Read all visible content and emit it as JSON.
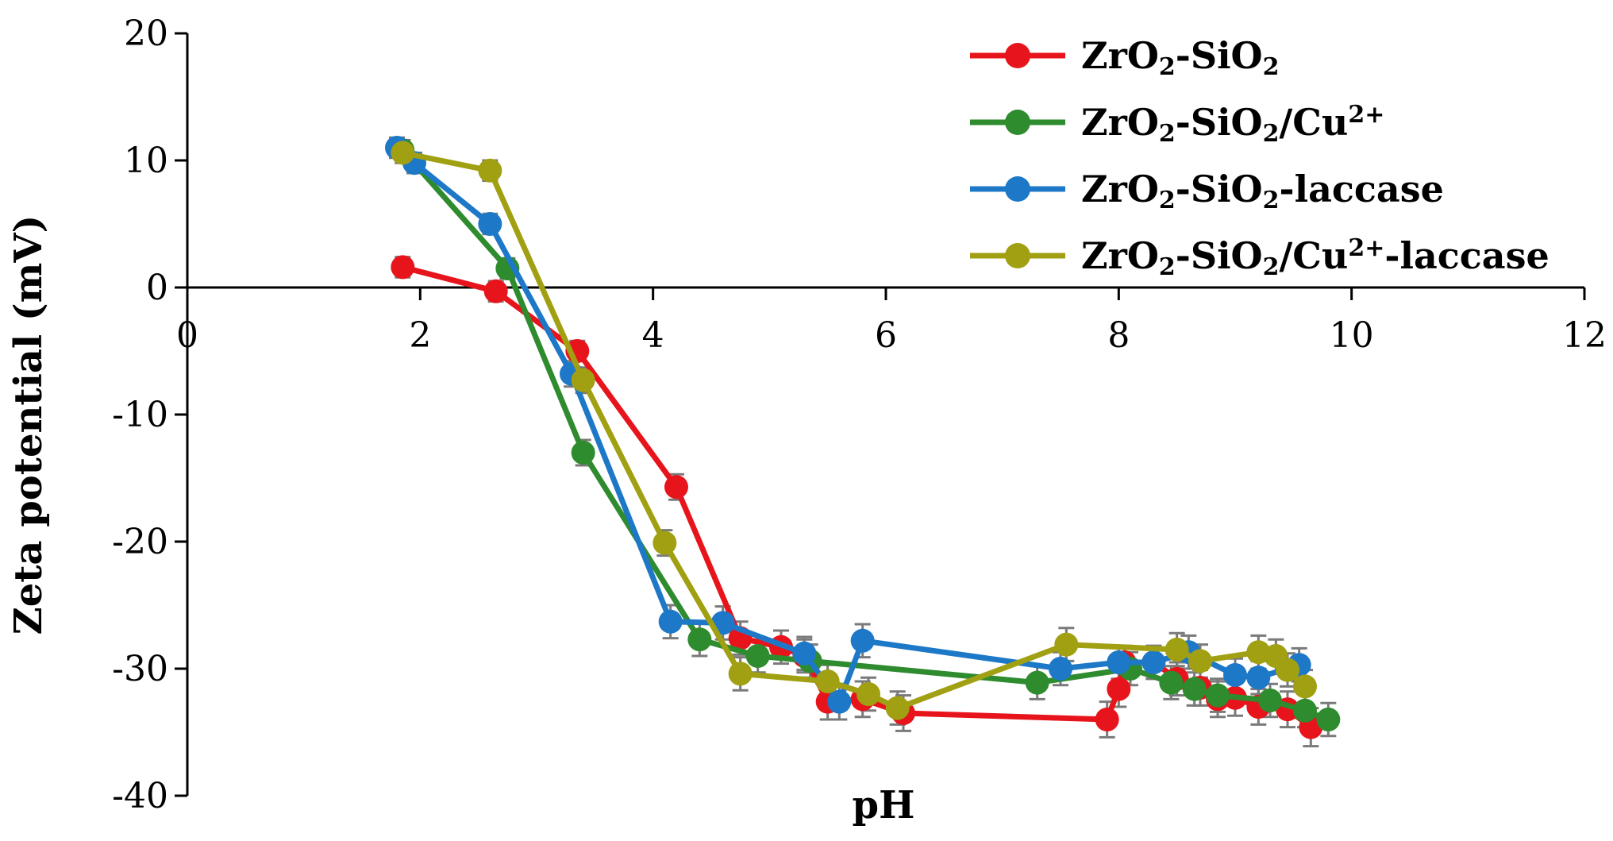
{
  "chart_data": {
    "type": "line",
    "title": "",
    "xlabel": "pH",
    "ylabel": "Zeta potential (mV)",
    "xlim": [
      0,
      12
    ],
    "ylim": [
      -40,
      20
    ],
    "xticks": [
      0,
      2,
      4,
      6,
      8,
      10,
      12
    ],
    "yticks": [
      20,
      10,
      0,
      -10,
      -20,
      -30,
      -40
    ],
    "legend_position": "top-right",
    "series": [
      {
        "name": "ZrO2-SiO2",
        "label_parts": [
          [
            "ZrO",
            ""
          ],
          [
            "2",
            "sub"
          ],
          [
            "-SiO",
            ""
          ],
          [
            "2",
            "sub"
          ]
        ],
        "color": "#e8141c",
        "points": [
          [
            1.85,
            1.6
          ],
          [
            2.65,
            -0.3
          ],
          [
            3.35,
            -5.0
          ],
          [
            4.2,
            -15.7
          ],
          [
            4.75,
            -27.6
          ],
          [
            5.1,
            -28.3
          ],
          [
            5.3,
            -29.0
          ],
          [
            5.5,
            -32.6
          ],
          [
            5.8,
            -32.4
          ],
          [
            6.15,
            -33.5
          ],
          [
            7.9,
            -34.0
          ],
          [
            8.0,
            -31.6
          ],
          [
            8.05,
            -29.5
          ],
          [
            8.3,
            -29.5
          ],
          [
            8.5,
            -30.8
          ],
          [
            8.7,
            -31.5
          ],
          [
            8.85,
            -32.4
          ],
          [
            9.0,
            -32.3
          ],
          [
            9.2,
            -33.0
          ],
          [
            9.45,
            -33.2
          ],
          [
            9.65,
            -34.6
          ]
        ],
        "errors": [
          0.8,
          0.8,
          0.8,
          1.0,
          1.3,
          1.3,
          1.3,
          1.4,
          1.4,
          1.4,
          1.4,
          1.4,
          1.3,
          1.3,
          1.3,
          1.4,
          1.4,
          1.4,
          1.4,
          1.4,
          1.5
        ]
      },
      {
        "name": "ZrO2-SiO2/Cu2+",
        "label_parts": [
          [
            "ZrO",
            ""
          ],
          [
            "2",
            "sub"
          ],
          [
            "-SiO",
            ""
          ],
          [
            "2",
            "sub"
          ],
          [
            "/Cu",
            ""
          ],
          [
            "2+",
            "sup"
          ]
        ],
        "color": "#2e8b2e",
        "points": [
          [
            1.85,
            10.8
          ],
          [
            2.75,
            1.5
          ],
          [
            3.4,
            -13.0
          ],
          [
            4.4,
            -27.7
          ],
          [
            4.9,
            -29.0
          ],
          [
            5.35,
            -29.4
          ],
          [
            7.3,
            -31.1
          ],
          [
            8.1,
            -30.0
          ],
          [
            8.45,
            -31.1
          ],
          [
            8.65,
            -31.6
          ],
          [
            8.85,
            -32.1
          ],
          [
            9.3,
            -32.5
          ],
          [
            9.6,
            -33.3
          ],
          [
            9.8,
            -34.0
          ]
        ],
        "errors": [
          0.8,
          0.8,
          1.0,
          1.3,
          1.3,
          1.3,
          1.3,
          1.3,
          1.3,
          1.3,
          1.3,
          1.3,
          1.3,
          1.3
        ]
      },
      {
        "name": "ZrO2-SiO2-laccase",
        "label_parts": [
          [
            "ZrO",
            ""
          ],
          [
            "2",
            "sub"
          ],
          [
            "-SiO",
            ""
          ],
          [
            "2",
            "sub"
          ],
          [
            "-laccase",
            ""
          ]
        ],
        "color": "#1e78c8",
        "points": [
          [
            1.8,
            11.0
          ],
          [
            1.95,
            9.8
          ],
          [
            2.6,
            5.0
          ],
          [
            3.3,
            -6.8
          ],
          [
            4.15,
            -26.3
          ],
          [
            4.6,
            -26.4
          ],
          [
            5.3,
            -28.8
          ],
          [
            5.6,
            -32.6
          ],
          [
            5.8,
            -27.8
          ],
          [
            7.5,
            -30.0
          ],
          [
            8.0,
            -29.5
          ],
          [
            8.3,
            -29.5
          ],
          [
            8.6,
            -28.7
          ],
          [
            9.0,
            -30.5
          ],
          [
            9.2,
            -30.7
          ],
          [
            9.55,
            -29.7
          ]
        ],
        "errors": [
          0.8,
          0.8,
          0.8,
          1.0,
          1.3,
          1.3,
          1.3,
          1.4,
          1.3,
          1.3,
          1.3,
          1.3,
          1.3,
          1.3,
          1.3,
          1.3
        ]
      },
      {
        "name": "ZrO2-SiO2/Cu2+-laccase",
        "label_parts": [
          [
            "ZrO",
            ""
          ],
          [
            "2",
            "sub"
          ],
          [
            "-SiO",
            ""
          ],
          [
            "2",
            "sub"
          ],
          [
            "/Cu",
            ""
          ],
          [
            "2+",
            "sup"
          ],
          [
            "-laccase",
            ""
          ]
        ],
        "color": "#a0a012",
        "points": [
          [
            1.85,
            10.6
          ],
          [
            2.6,
            9.2
          ],
          [
            3.4,
            -7.3
          ],
          [
            4.1,
            -20.1
          ],
          [
            4.75,
            -30.4
          ],
          [
            5.5,
            -31.0
          ],
          [
            5.85,
            -32.0
          ],
          [
            6.1,
            -33.1
          ],
          [
            7.55,
            -28.1
          ],
          [
            8.5,
            -28.5
          ],
          [
            8.7,
            -29.4
          ],
          [
            9.2,
            -28.7
          ],
          [
            9.35,
            -29.0
          ],
          [
            9.45,
            -30.1
          ],
          [
            9.6,
            -31.4
          ]
        ],
        "errors": [
          0.8,
          0.8,
          1.0,
          1.0,
          1.3,
          1.3,
          1.3,
          1.3,
          1.3,
          1.3,
          1.3,
          1.3,
          1.3,
          1.3,
          1.3
        ]
      }
    ]
  }
}
